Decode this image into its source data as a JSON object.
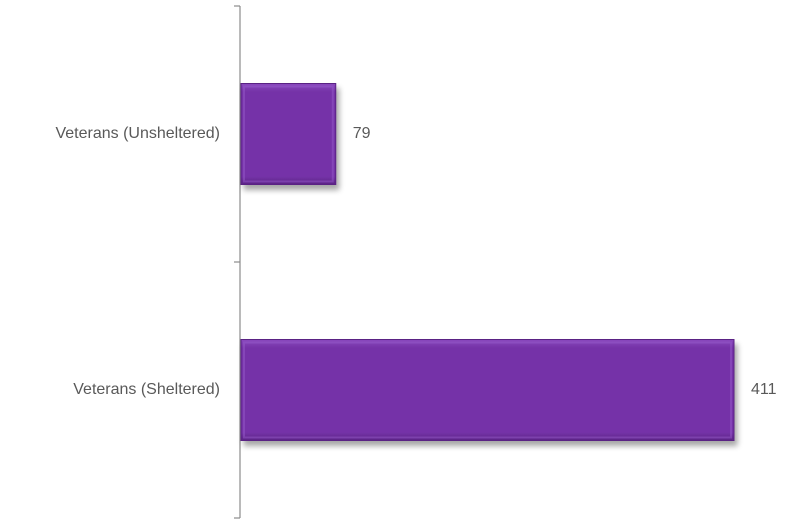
{
  "chart_data": {
    "type": "bar",
    "orientation": "horizontal",
    "categories": [
      "Veterans (Unsheltered)",
      "Veterans (Sheltered)"
    ],
    "values": [
      79,
      411
    ],
    "data_labels": [
      "79",
      "411"
    ],
    "title": "",
    "xlabel": "",
    "ylabel": "",
    "xlim": [
      0,
      411
    ],
    "grid": false,
    "legend": "none",
    "colors": {
      "bar": "#7533a8",
      "bar_shade": "#5a2384",
      "axis": "#8c8c8c",
      "text": "#595959"
    }
  }
}
